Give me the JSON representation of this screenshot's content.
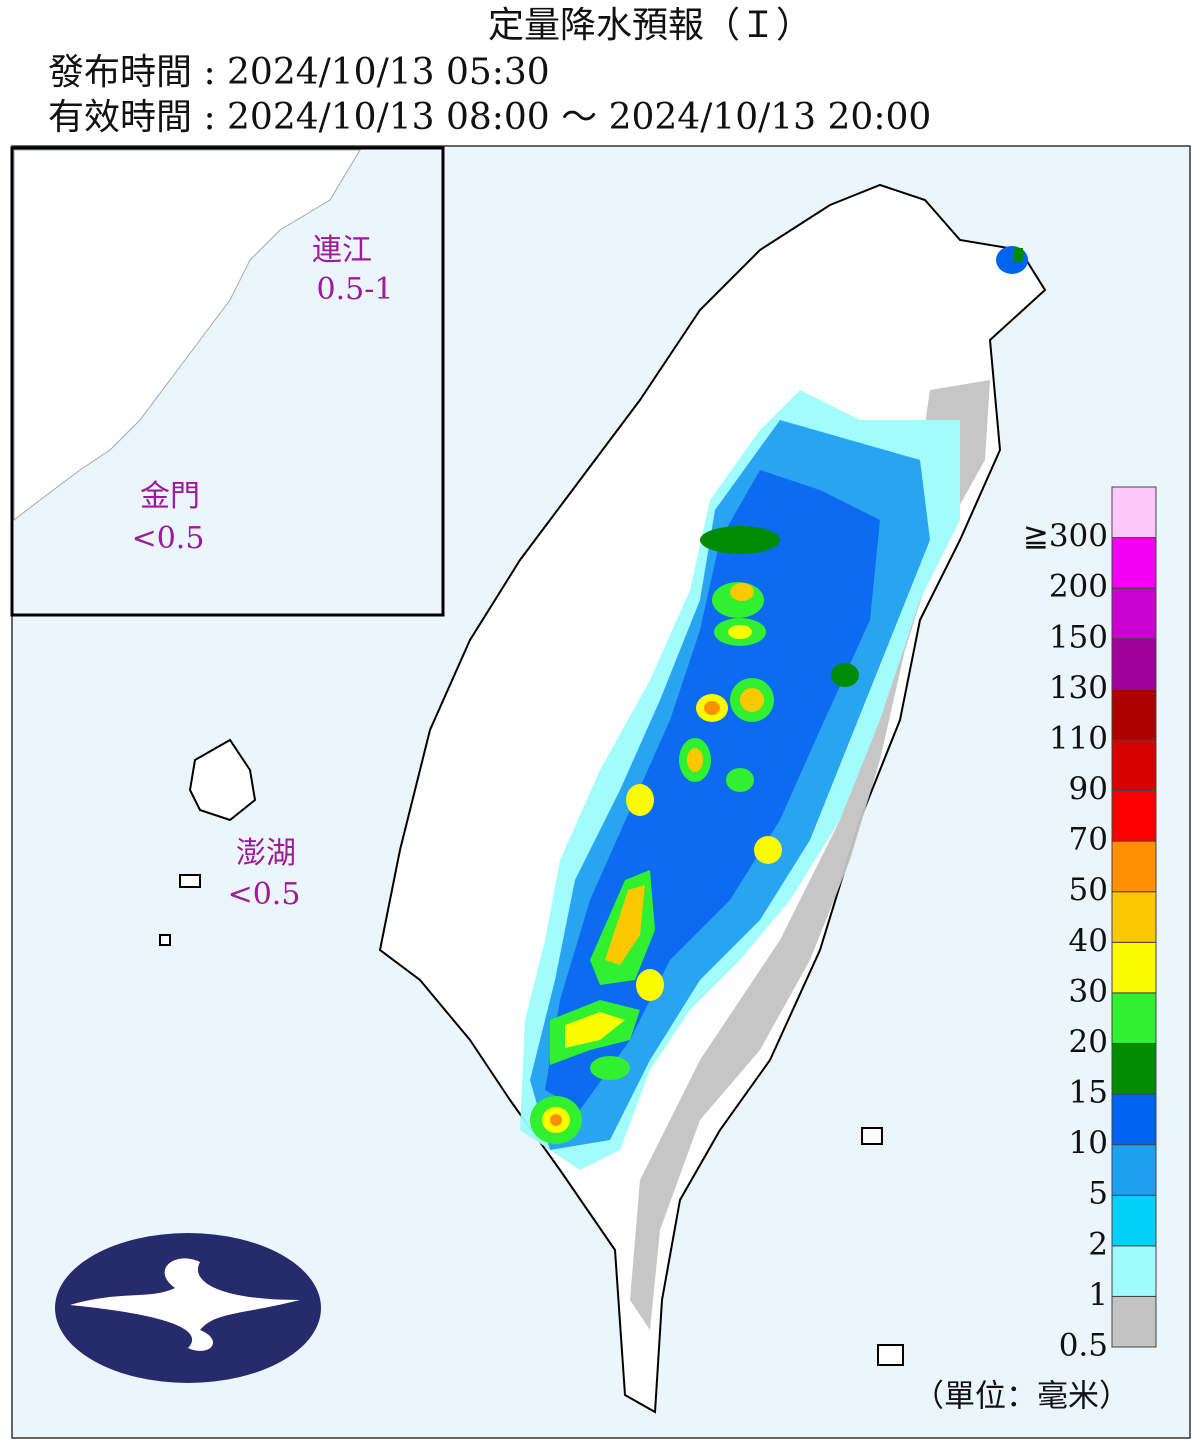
{
  "header": {
    "title": "定量降水預報（Ｉ）",
    "issue_time": "發布時間 : 2024/10/13 05:30",
    "valid_time": "有效時間 : 2024/10/13 08:00 ～ 2024/10/13 20:00"
  },
  "regions": [
    {
      "name": "連江",
      "amount": "0.5-1"
    },
    {
      "name": "金門",
      "amount": "<0.5"
    },
    {
      "name": "澎湖",
      "amount": "<0.5"
    }
  ],
  "legend": {
    "colors": [
      "#c4c4c4",
      "#9ffcfc",
      "#00d0f8",
      "#1ea0f0",
      "#0064f0",
      "#008c00",
      "#30f030",
      "#fcfc00",
      "#fcc800",
      "#fc9000",
      "#fc0000",
      "#d80000",
      "#aa0000",
      "#a0009c",
      "#c800d0",
      "#f400f4",
      "#fcc8fc"
    ],
    "labels": [
      "0.5",
      "1",
      "2",
      "5",
      "10",
      "15",
      "20",
      "30",
      "40",
      "50",
      "70",
      "90",
      "110",
      "130",
      "150",
      "200",
      "≧300"
    ],
    "unit": "（單位：毫米）"
  }
}
